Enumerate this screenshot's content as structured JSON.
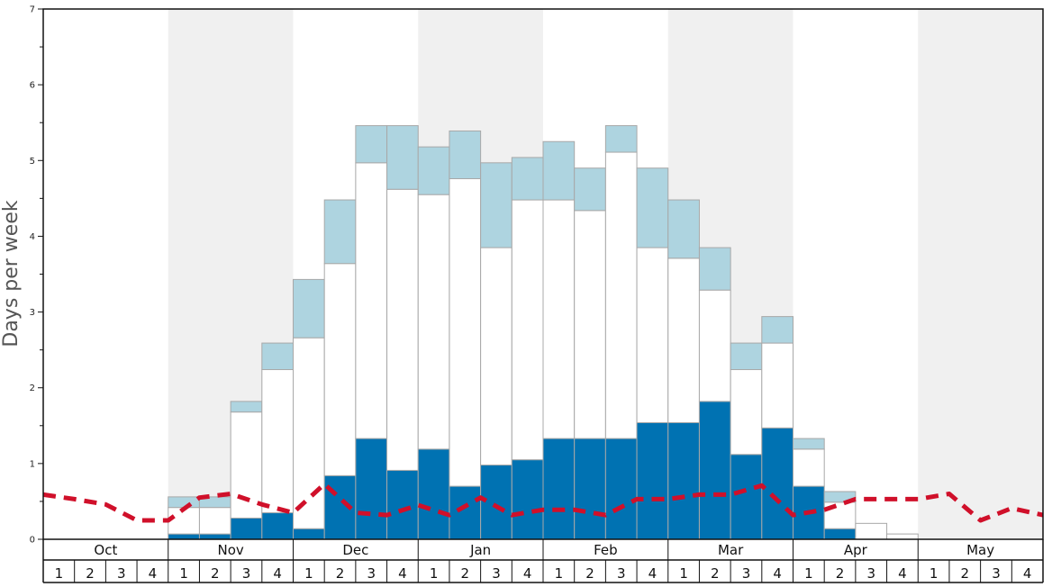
{
  "chart_data": {
    "type": "bar",
    "ylabel": "Days per week",
    "ylim": [
      0,
      7
    ],
    "y_major_ticks": [
      "0",
      "1",
      "2",
      "3",
      "4",
      "5",
      "6",
      "7"
    ],
    "months": [
      "Oct",
      "Nov",
      "Dec",
      "Jan",
      "Feb",
      "Mar",
      "Apr",
      "May"
    ],
    "shaded_months": [
      "Nov",
      "Jan",
      "Mar",
      "May"
    ],
    "weeks": [
      "1",
      "2",
      "3",
      "4",
      "1",
      "2",
      "3",
      "4",
      "1",
      "2",
      "3",
      "4",
      "1",
      "2",
      "3",
      "4",
      "1",
      "2",
      "3",
      "4",
      "1",
      "2",
      "3",
      "4",
      "1",
      "2",
      "3",
      "4",
      "1",
      "2",
      "3",
      "4"
    ],
    "series": [
      {
        "color": "#0072b2",
        "values": [
          0,
          0,
          0,
          0,
          0.07,
          0.07,
          0.28,
          0.35,
          0.14,
          0.84,
          1.33,
          0.91,
          1.19,
          0.7,
          0.98,
          1.05,
          1.33,
          1.33,
          1.33,
          1.54,
          1.54,
          1.82,
          1.12,
          1.47,
          0.7,
          0.14,
          0,
          0,
          0,
          0,
          0,
          0
        ]
      },
      {
        "color": "#ffffff",
        "values": [
          0,
          0,
          0,
          0,
          0.35,
          0.35,
          1.4,
          1.89,
          2.52,
          2.8,
          3.64,
          3.71,
          3.36,
          4.06,
          2.87,
          3.43,
          3.15,
          3.01,
          3.78,
          2.31,
          2.17,
          1.47,
          1.12,
          1.12,
          0.49,
          0.35,
          0.21,
          0.07,
          0,
          0,
          0,
          0
        ]
      },
      {
        "color": "#aed4e0",
        "values": [
          0,
          0,
          0,
          0,
          0.14,
          0.14,
          0.14,
          0.35,
          0.77,
          0.84,
          0.49,
          0.84,
          0.63,
          0.63,
          1.12,
          0.56,
          0.77,
          0.56,
          0.35,
          1.05,
          0.77,
          0.56,
          0.35,
          0.35,
          0.14,
          0.14,
          0,
          0,
          0,
          0,
          0,
          0
        ]
      }
    ],
    "dashed_line": {
      "color": "#d0102a",
      "values": [
        0.59,
        0.53,
        0.46,
        0.25,
        0.25,
        0.55,
        0.6,
        0.46,
        0.35,
        0.73,
        0.35,
        0.32,
        0.45,
        0.32,
        0.55,
        0.32,
        0.39,
        0.39,
        0.32,
        0.53,
        0.53,
        0.59,
        0.59,
        0.71,
        0.32,
        0.39,
        0.53,
        0.53,
        0.53,
        0.6,
        0.25,
        0.41,
        0.32
      ]
    },
    "grid": false,
    "legend": "none"
  }
}
